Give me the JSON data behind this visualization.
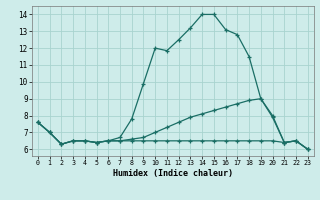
{
  "xlabel": "Humidex (Indice chaleur)",
  "bg_color": "#ceecea",
  "grid_color": "#a8d4cf",
  "line_color": "#1a6e65",
  "xlim": [
    -0.5,
    23.5
  ],
  "ylim": [
    5.6,
    14.5
  ],
  "xticks": [
    0,
    1,
    2,
    3,
    4,
    5,
    6,
    7,
    8,
    9,
    10,
    11,
    12,
    13,
    14,
    15,
    16,
    17,
    18,
    19,
    20,
    21,
    22,
    23
  ],
  "yticks": [
    6,
    7,
    8,
    9,
    10,
    11,
    12,
    13,
    14
  ],
  "line1_x": [
    0,
    1,
    2,
    3,
    4,
    5,
    6,
    7,
    8,
    9,
    10,
    11,
    12,
    13,
    14,
    15,
    16,
    17,
    18,
    19,
    20,
    21,
    22,
    23
  ],
  "line1_y": [
    7.6,
    7.0,
    6.3,
    6.5,
    6.5,
    6.4,
    6.5,
    6.7,
    7.8,
    9.9,
    12.0,
    11.85,
    12.5,
    13.2,
    14.0,
    14.0,
    13.1,
    12.8,
    11.5,
    9.0,
    7.9,
    6.4,
    6.5,
    6.0
  ],
  "line2_x": [
    0,
    1,
    2,
    3,
    4,
    5,
    6,
    7,
    8,
    9,
    10,
    11,
    12,
    13,
    14,
    15,
    16,
    17,
    18,
    19,
    20,
    21,
    22,
    23
  ],
  "line2_y": [
    7.6,
    7.0,
    6.3,
    6.5,
    6.5,
    6.4,
    6.5,
    6.5,
    6.6,
    6.7,
    7.0,
    7.3,
    7.6,
    7.9,
    8.1,
    8.3,
    8.5,
    8.7,
    8.9,
    9.0,
    8.0,
    6.4,
    6.5,
    6.0
  ],
  "line3_x": [
    0,
    1,
    2,
    3,
    4,
    5,
    6,
    7,
    8,
    9,
    10,
    11,
    12,
    13,
    14,
    15,
    16,
    17,
    18,
    19,
    20,
    21,
    22,
    23
  ],
  "line3_y": [
    7.6,
    7.0,
    6.3,
    6.5,
    6.5,
    6.4,
    6.5,
    6.5,
    6.5,
    6.5,
    6.5,
    6.5,
    6.5,
    6.5,
    6.5,
    6.5,
    6.5,
    6.5,
    6.5,
    6.5,
    6.5,
    6.4,
    6.5,
    6.0
  ]
}
